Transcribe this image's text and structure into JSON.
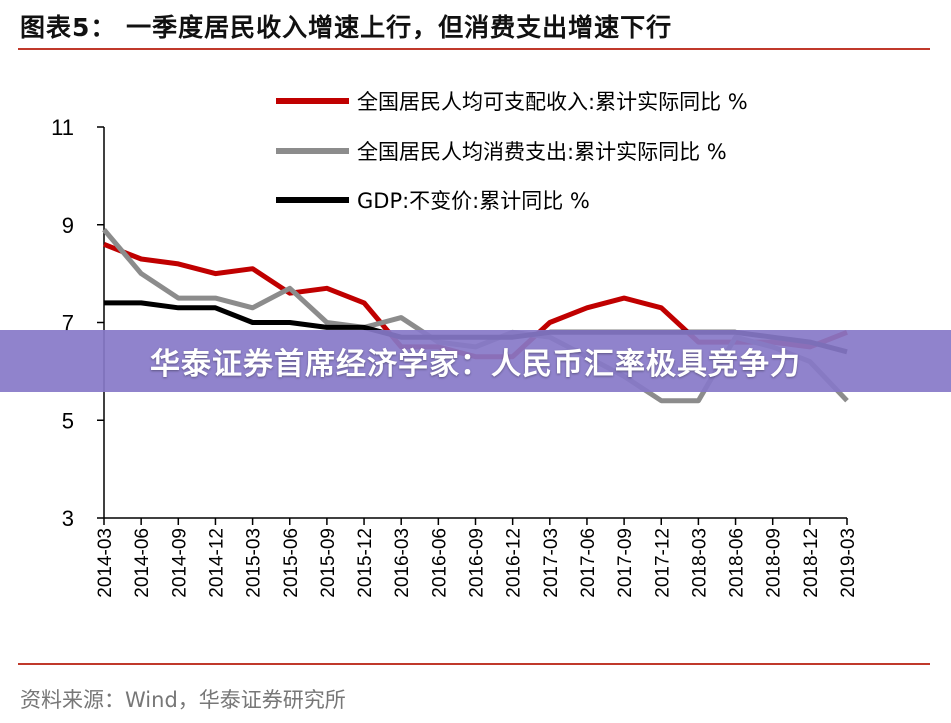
{
  "figure": {
    "title": "图表5：  一季度居民收入增速上行，但消费支出增速下行",
    "source": "资料来源：Wind，华泰证券研究所"
  },
  "banner": {
    "text": "华泰证券首席经济学家：人民币汇率极具竞争力"
  },
  "colors": {
    "rule": "#c0392b",
    "banner": "#8778c8"
  },
  "chart_data": {
    "type": "line",
    "title": "图表5：  一季度居民收入增速上行，但消费支出增速下行",
    "xlabel": "",
    "ylabel": "",
    "ylim": [
      3,
      11
    ],
    "yticks": [
      3,
      5,
      7,
      9,
      11
    ],
    "grid": false,
    "legend": "top-right",
    "x": [
      "2014-03",
      "2014-06",
      "2014-09",
      "2014-12",
      "2015-03",
      "2015-06",
      "2015-09",
      "2015-12",
      "2016-03",
      "2016-06",
      "2016-09",
      "2016-12",
      "2017-03",
      "2017-06",
      "2017-09",
      "2017-12",
      "2018-03",
      "2018-06",
      "2018-09",
      "2018-12",
      "2019-03"
    ],
    "series": [
      {
        "name": "全国居民人均可支配收入:累计实际同比 %",
        "color": "#c00000",
        "values": [
          8.6,
          8.3,
          8.2,
          8.0,
          8.1,
          7.6,
          7.7,
          7.4,
          6.5,
          6.5,
          6.3,
          6.3,
          7.0,
          7.3,
          7.5,
          7.3,
          6.6,
          6.6,
          6.6,
          6.5,
          6.8
        ]
      },
      {
        "name": "全国居民人均消费支出:累计实际同比 %",
        "color": "#8c8c8c",
        "values": [
          8.9,
          8.0,
          7.5,
          7.5,
          7.3,
          7.7,
          7.0,
          6.9,
          7.1,
          6.6,
          6.5,
          6.8,
          6.7,
          6.3,
          5.9,
          5.4,
          5.4,
          6.7,
          6.5,
          6.2,
          5.4
        ]
      },
      {
        "name": "GDP:不变价:累计同比 %",
        "color": "#000000",
        "values": [
          7.4,
          7.4,
          7.3,
          7.3,
          7.0,
          7.0,
          6.9,
          6.9,
          6.7,
          6.7,
          6.7,
          6.7,
          6.8,
          6.8,
          6.8,
          6.8,
          6.8,
          6.8,
          6.7,
          6.6,
          6.4
        ]
      }
    ]
  }
}
